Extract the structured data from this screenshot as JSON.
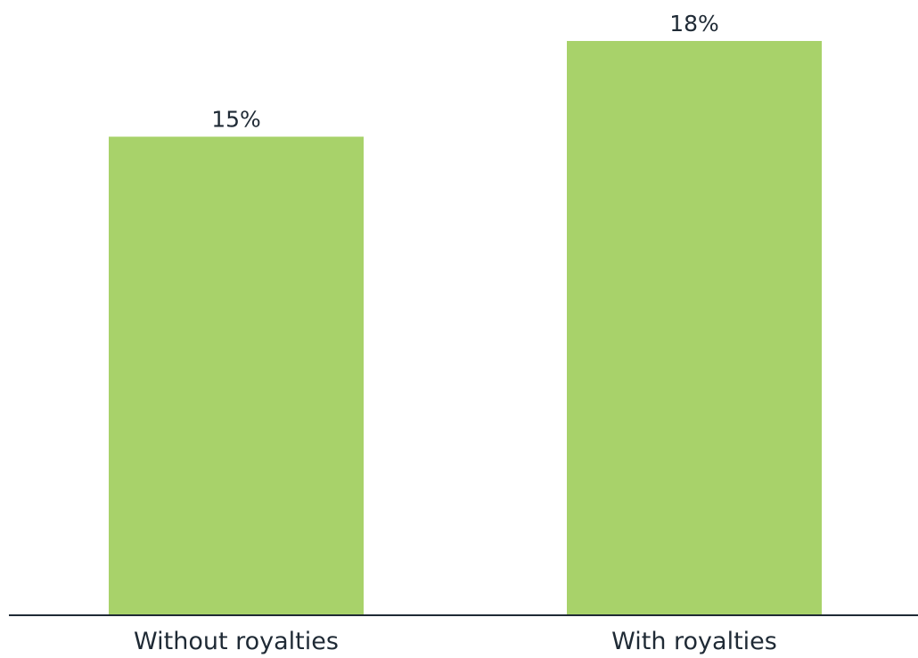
{
  "chart_data": {
    "type": "bar",
    "title": "",
    "xlabel": "",
    "ylabel": "",
    "categories": [
      "Without royalties",
      "With royalties"
    ],
    "values": [
      15,
      18
    ],
    "value_labels": [
      "15%",
      "18%"
    ],
    "ylim": [
      0,
      18.5
    ],
    "grid": false,
    "legend": "none",
    "bar_color": "#a8d26a",
    "axis_color": "#1f2a35",
    "text_color": "#1f2a35"
  }
}
